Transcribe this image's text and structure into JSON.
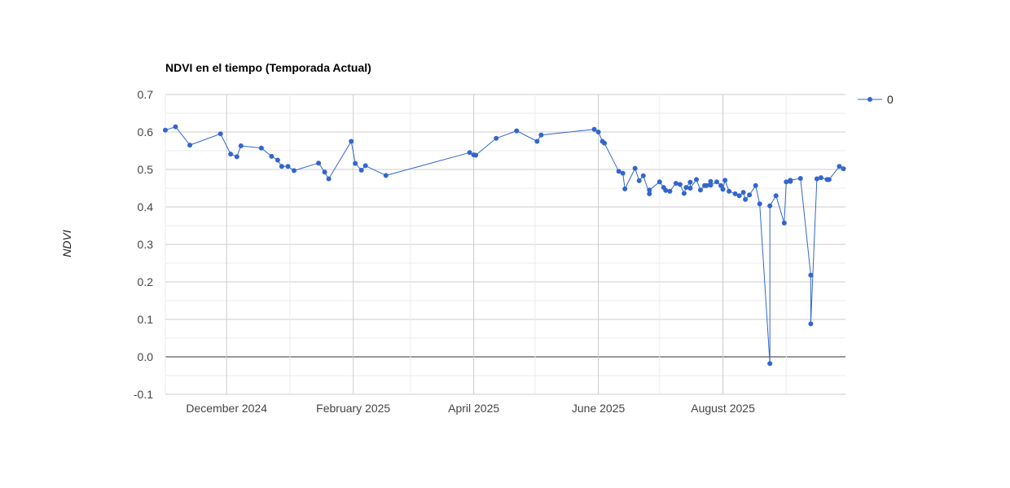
{
  "chart_data": {
    "type": "line",
    "title": "NDVI en el tiempo (Temporada Actual)",
    "xlabel": "",
    "ylabel": "NDVI",
    "ylim": [
      -0.1,
      0.7
    ],
    "yticks": [
      "-0.1",
      "0.0",
      "0.1",
      "0.2",
      "0.3",
      "0.4",
      "0.5",
      "0.6",
      "0.7"
    ],
    "xlim": [
      "2024-11-01",
      "2025-09-30"
    ],
    "xticks": [
      {
        "date": "2024-12-01",
        "label": "December 2024"
      },
      {
        "date": "2025-02-01",
        "label": "February 2025"
      },
      {
        "date": "2025-04-01",
        "label": "April 2025"
      },
      {
        "date": "2025-06-01",
        "label": "June 2025"
      },
      {
        "date": "2025-08-01",
        "label": "August 2025"
      }
    ],
    "minor_grid_dates": [
      "2024-11-01",
      "2025-01-01",
      "2025-03-01",
      "2025-05-01",
      "2025-07-01",
      "2025-09-01"
    ],
    "grid": true,
    "legend": "right",
    "colors": {
      "series": "#3366cc",
      "grid_major": "#cccccc",
      "grid_minor": "#ebebeb",
      "baseline": "#333333"
    },
    "series": [
      {
        "name": "0",
        "points": [
          [
            "2024-11-01",
            0.605
          ],
          [
            "2024-11-06",
            0.614
          ],
          [
            "2024-11-13",
            0.565
          ],
          [
            "2024-11-28",
            0.595
          ],
          [
            "2024-12-03",
            0.541
          ],
          [
            "2024-12-06",
            0.534
          ],
          [
            "2024-12-08",
            0.563
          ],
          [
            "2024-12-18",
            0.557
          ],
          [
            "2024-12-23",
            0.535
          ],
          [
            "2024-12-26",
            0.525
          ],
          [
            "2024-12-28",
            0.508
          ],
          [
            "2024-12-31",
            0.508
          ],
          [
            "2025-01-03",
            0.497
          ],
          [
            "2025-01-15",
            0.517
          ],
          [
            "2025-01-18",
            0.493
          ],
          [
            "2025-01-20",
            0.475
          ],
          [
            "2025-01-31",
            0.575
          ],
          [
            "2025-02-02",
            0.516
          ],
          [
            "2025-02-05",
            0.498
          ],
          [
            "2025-02-07",
            0.51
          ],
          [
            "2025-02-17",
            0.484
          ],
          [
            "2025-03-30",
            0.545
          ],
          [
            "2025-04-01",
            0.539
          ],
          [
            "2025-04-02",
            0.538
          ],
          [
            "2025-04-12",
            0.583
          ],
          [
            "2025-04-22",
            0.603
          ],
          [
            "2025-05-02",
            0.575
          ],
          [
            "2025-05-04",
            0.592
          ],
          [
            "2025-05-30",
            0.607
          ],
          [
            "2025-06-01",
            0.6
          ],
          [
            "2025-06-03",
            0.575
          ],
          [
            "2025-06-04",
            0.57
          ],
          [
            "2025-06-11",
            0.495
          ],
          [
            "2025-06-13",
            0.49
          ],
          [
            "2025-06-14",
            0.448
          ],
          [
            "2025-06-19",
            0.503
          ],
          [
            "2025-06-21",
            0.47
          ],
          [
            "2025-06-23",
            0.483
          ],
          [
            "2025-06-26",
            0.435
          ],
          [
            "2025-06-26",
            0.445
          ],
          [
            "2025-07-01",
            0.467
          ],
          [
            "2025-07-03",
            0.452
          ],
          [
            "2025-07-04",
            0.444
          ],
          [
            "2025-07-06",
            0.442
          ],
          [
            "2025-07-09",
            0.463
          ],
          [
            "2025-07-11",
            0.46
          ],
          [
            "2025-07-13",
            0.436
          ],
          [
            "2025-07-14",
            0.452
          ],
          [
            "2025-07-16",
            0.466
          ],
          [
            "2025-07-16",
            0.45
          ],
          [
            "2025-07-19",
            0.473
          ],
          [
            "2025-07-21",
            0.445
          ],
          [
            "2025-07-23",
            0.457
          ],
          [
            "2025-07-24",
            0.457
          ],
          [
            "2025-07-26",
            0.468
          ],
          [
            "2025-07-26",
            0.458
          ],
          [
            "2025-07-29",
            0.467
          ],
          [
            "2025-07-31",
            0.457
          ],
          [
            "2025-08-01",
            0.447
          ],
          [
            "2025-08-02",
            0.471
          ],
          [
            "2025-08-04",
            0.442
          ],
          [
            "2025-08-07",
            0.435
          ],
          [
            "2025-08-09",
            0.43
          ],
          [
            "2025-08-11",
            0.439
          ],
          [
            "2025-08-12",
            0.42
          ],
          [
            "2025-08-14",
            0.432
          ],
          [
            "2025-08-17",
            0.457
          ],
          [
            "2025-08-19",
            0.408
          ],
          [
            "2025-08-24",
            -0.018
          ],
          [
            "2025-08-24",
            0.403
          ],
          [
            "2025-08-27",
            0.43
          ],
          [
            "2025-08-31",
            0.357
          ],
          [
            "2025-09-01",
            0.467
          ],
          [
            "2025-09-03",
            0.468
          ],
          [
            "2025-09-03",
            0.471
          ],
          [
            "2025-09-08",
            0.476
          ],
          [
            "2025-09-13",
            0.218
          ],
          [
            "2025-09-13",
            0.088
          ],
          [
            "2025-09-16",
            0.475
          ],
          [
            "2025-09-18",
            0.478
          ],
          [
            "2025-09-21",
            0.473
          ],
          [
            "2025-09-22",
            0.473
          ],
          [
            "2025-09-27",
            0.508
          ],
          [
            "2025-09-29",
            0.502
          ]
        ]
      }
    ]
  }
}
